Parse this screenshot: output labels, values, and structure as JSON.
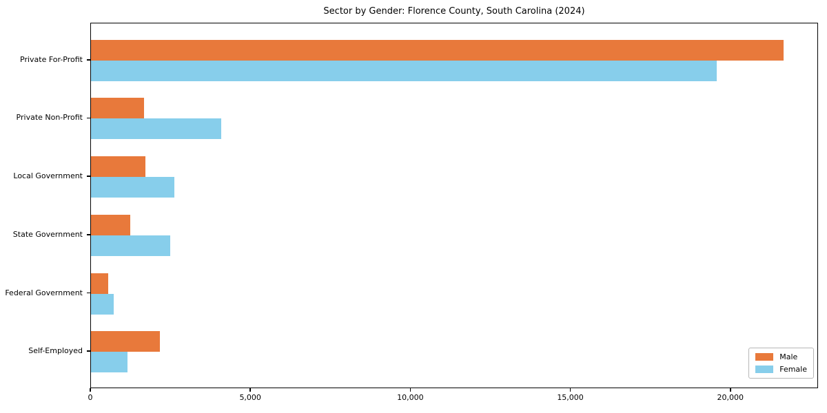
{
  "chart_data": {
    "type": "bar",
    "orientation": "horizontal",
    "title": "Sector by Gender: Florence County, South Carolina (2024)",
    "categories": [
      "Private For-Profit",
      "Private Non-Profit",
      "Local Government",
      "State Government",
      "Federal Government",
      "Self-Employed"
    ],
    "series": [
      {
        "name": "Male",
        "color": "#e8793b",
        "values": [
          21650,
          1660,
          1700,
          1230,
          540,
          2150
        ]
      },
      {
        "name": "Female",
        "color": "#87ceeb",
        "values": [
          19550,
          4070,
          2610,
          2480,
          710,
          1140
        ]
      }
    ],
    "xlabel": "",
    "ylabel": "",
    "xlim": [
      0,
      22740
    ],
    "xticks": [
      0,
      5000,
      10000,
      15000,
      20000
    ],
    "xtick_labels": [
      "0",
      "5,000",
      "10,000",
      "15,000",
      "20,000"
    ],
    "grid": false,
    "legend": {
      "position": "lower-right",
      "entries": [
        "Male",
        "Female"
      ]
    }
  }
}
